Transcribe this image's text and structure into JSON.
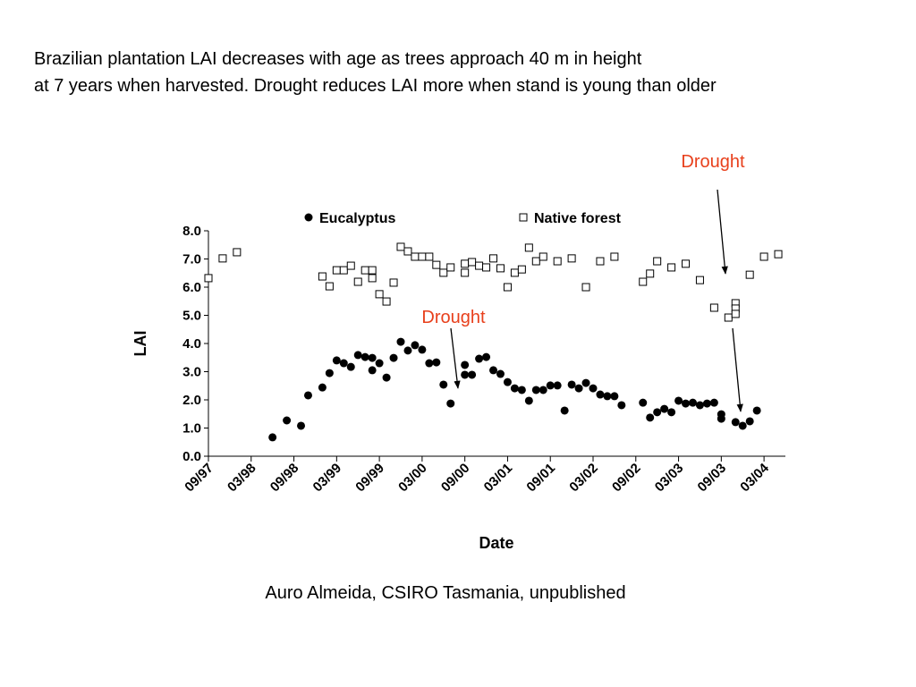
{
  "chart_data": {
    "type": "scatter",
    "title_lines": [
      "Brazilian plantation LAI decreases with age as trees approach 40 m in height",
      "at 7 years when harvested. Drought reduces LAI more when stand is young than older"
    ],
    "xlabel": "Date",
    "ylabel": "LAI",
    "caption": "Auro Almeida, CSIRO Tasmania, unpublished",
    "annotations": [
      "Drought",
      "Drought"
    ],
    "xlim": [
      "09/97",
      "06/04"
    ],
    "xticks": [
      "09/97",
      "03/98",
      "09/98",
      "03/99",
      "09/99",
      "03/00",
      "09/00",
      "03/01",
      "09/01",
      "03/02",
      "09/02",
      "03/03",
      "09/03",
      "03/04"
    ],
    "ylim": [
      0,
      8
    ],
    "yticks": [
      {
        "value": 0,
        "label": "0.0"
      },
      {
        "value": 1,
        "label": "1.0"
      },
      {
        "value": 2,
        "label": "2.0"
      },
      {
        "value": 3,
        "label": "3.0"
      },
      {
        "value": 4,
        "label": "4.0"
      },
      {
        "value": 5,
        "label": "5.0"
      },
      {
        "value": 6,
        "label": "6.0"
      },
      {
        "value": 7,
        "label": "7.0"
      },
      {
        "value": 8,
        "label": "8.0"
      }
    ],
    "series": [
      {
        "name": "Eucalyptus",
        "marker": "filled-circle",
        "color": "#000000",
        "x": [
          "06/98",
          "08/98",
          "10/98",
          "11/98",
          "01/99",
          "02/99",
          "03/99",
          "04/99",
          "05/99",
          "06/99",
          "07/99",
          "08/99",
          "08/99",
          "09/99",
          "10/99",
          "11/99",
          "12/99",
          "01/00",
          "02/00",
          "03/00",
          "04/00",
          "05/00",
          "06/00",
          "07/00",
          "09/00",
          "09/00",
          "10/00",
          "11/00",
          "12/00",
          "01/01",
          "02/01",
          "03/01",
          "04/01",
          "05/01",
          "06/01",
          "07/01",
          "08/01",
          "09/01",
          "10/01",
          "11/01",
          "12/01",
          "01/02",
          "02/02",
          "03/02",
          "04/02",
          "05/02",
          "06/02",
          "07/02",
          "10/02",
          "11/02",
          "12/02",
          "01/03",
          "02/03",
          "03/03",
          "04/03",
          "05/03",
          "06/03",
          "07/03",
          "08/03",
          "09/03",
          "09/03",
          "11/03",
          "12/03",
          "01/04",
          "02/04"
        ],
        "values": [
          0.67,
          1.27,
          1.08,
          2.16,
          2.44,
          2.95,
          3.4,
          3.3,
          3.17,
          3.59,
          3.52,
          3.49,
          3.05,
          3.3,
          2.79,
          3.49,
          4.06,
          3.75,
          3.94,
          3.78,
          3.3,
          3.33,
          2.54,
          1.87,
          3.24,
          2.89,
          2.89,
          3.46,
          3.52,
          3.05,
          2.92,
          2.63,
          2.41,
          2.35,
          1.97,
          2.35,
          2.35,
          2.51,
          2.51,
          1.62,
          2.54,
          2.41,
          2.6,
          2.41,
          2.19,
          2.13,
          2.13,
          1.81,
          1.9,
          1.37,
          1.56,
          1.68,
          1.56,
          1.97,
          1.87,
          1.9,
          1.81,
          1.87,
          1.9,
          1.49,
          1.33,
          1.21,
          1.08,
          1.24,
          1.62
        ]
      },
      {
        "name": "Native forest",
        "marker": "open-square",
        "color": "#000000",
        "x": [
          "09/97",
          "11/97",
          "01/98",
          "01/99",
          "02/99",
          "03/99",
          "04/99",
          "05/99",
          "06/99",
          "07/99",
          "08/99",
          "08/99",
          "09/99",
          "10/99",
          "11/99",
          "12/99",
          "01/00",
          "02/00",
          "03/00",
          "04/00",
          "05/00",
          "06/00",
          "07/00",
          "09/00",
          "09/00",
          "10/00",
          "11/00",
          "12/00",
          "01/01",
          "02/01",
          "03/01",
          "04/01",
          "05/01",
          "06/01",
          "07/01",
          "08/01",
          "10/01",
          "12/01",
          "02/02",
          "04/02",
          "06/02",
          "10/02",
          "11/02",
          "12/02",
          "02/03",
          "04/03",
          "06/03",
          "08/03",
          "10/03",
          "11/03",
          "11/03",
          "11/03",
          "01/04",
          "03/04",
          "05/04"
        ],
        "values": [
          6.32,
          7.02,
          7.24,
          6.38,
          6.03,
          6.6,
          6.6,
          6.76,
          6.19,
          6.6,
          6.6,
          6.32,
          5.75,
          5.49,
          6.16,
          7.43,
          7.27,
          7.08,
          7.08,
          7.08,
          6.79,
          6.51,
          6.7,
          6.51,
          6.83,
          6.89,
          6.76,
          6.7,
          7.02,
          6.67,
          6.0,
          6.51,
          6.63,
          7.4,
          6.92,
          7.08,
          6.92,
          7.02,
          6.0,
          6.92,
          7.08,
          6.19,
          6.48,
          6.92,
          6.7,
          6.83,
          6.25,
          5.27,
          4.92,
          5.43,
          5.24,
          5.05,
          6.44,
          7.08,
          7.17
        ]
      }
    ]
  }
}
